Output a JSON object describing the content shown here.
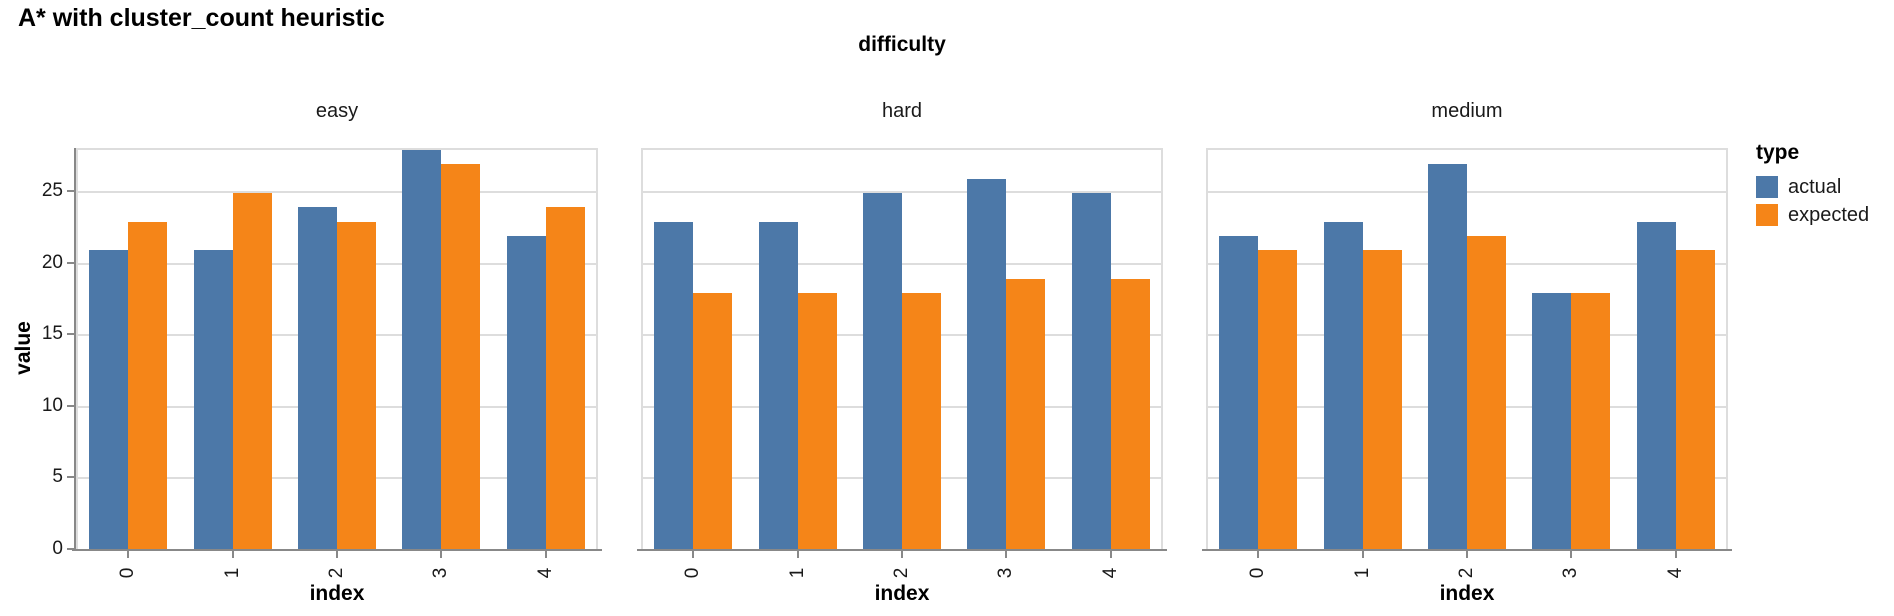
{
  "page": {
    "title": "A* with cluster_count heuristic"
  },
  "chart_data": {
    "type": "bar",
    "title": "A* with cluster_count heuristic",
    "facet_title": "difficulty",
    "xlabel": "index",
    "ylabel": "value",
    "categories": [
      "0",
      "1",
      "2",
      "3",
      "4"
    ],
    "ylim": [
      0,
      28
    ],
    "yticks": [
      0,
      5,
      10,
      15,
      20,
      25
    ],
    "grid": true,
    "legend": {
      "title": "type",
      "position": "right",
      "entries": [
        {
          "label": "actual",
          "color": "#4c78a8"
        },
        {
          "label": "expected",
          "color": "#f58518"
        }
      ]
    },
    "facets": [
      {
        "label": "easy",
        "series": [
          {
            "name": "actual",
            "values": [
              21,
              21,
              24,
              28,
              22
            ]
          },
          {
            "name": "expected",
            "values": [
              23,
              25,
              23,
              27,
              24
            ]
          }
        ]
      },
      {
        "label": "hard",
        "series": [
          {
            "name": "actual",
            "values": [
              23,
              23,
              25,
              26,
              25
            ]
          },
          {
            "name": "expected",
            "values": [
              18,
              18,
              18,
              19,
              19
            ]
          }
        ]
      },
      {
        "label": "medium",
        "series": [
          {
            "name": "actual",
            "values": [
              22,
              23,
              27,
              18,
              23
            ]
          },
          {
            "name": "expected",
            "values": [
              21,
              21,
              22,
              18,
              21
            ]
          }
        ]
      }
    ]
  }
}
